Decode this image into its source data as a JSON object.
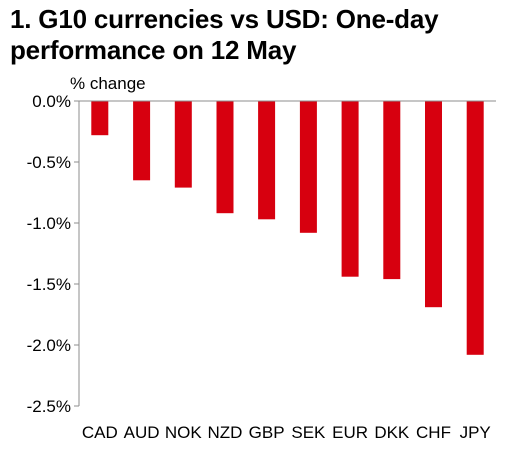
{
  "chart_data": {
    "type": "bar",
    "title_line1": "1. G10 currencies vs USD: One-day",
    "title_line2": "performance on 12 May",
    "ylabel": "% change",
    "xlabel": "",
    "categories": [
      "CAD",
      "AUD",
      "NOK",
      "NZD",
      "GBP",
      "SEK",
      "EUR",
      "DKK",
      "CHF",
      "JPY"
    ],
    "values": [
      -0.28,
      -0.65,
      -0.71,
      -0.92,
      -0.97,
      -1.08,
      -1.44,
      -1.46,
      -1.69,
      -2.08
    ],
    "ylim": [
      -2.5,
      0
    ],
    "yticks": [
      0.0,
      -0.5,
      -1.0,
      -1.5,
      -2.0,
      -2.5
    ],
    "ytick_labels": [
      "0.0%",
      "-0.5%",
      "-1.0%",
      "-1.5%",
      "-2.0%",
      "-2.5%"
    ],
    "grid": false,
    "legend": "none",
    "bar_color": "#d7000f",
    "axis_color": "#8c8c8c"
  }
}
